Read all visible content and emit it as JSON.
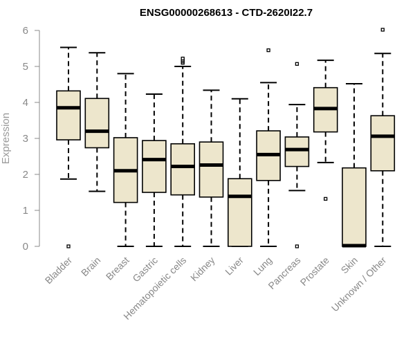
{
  "chart_data": {
    "type": "boxplot",
    "title": "ENSG00000268613 - CTD-2620I22.7",
    "xlabel": "",
    "ylabel": "Expression",
    "ylim": [
      0,
      6
    ],
    "yticks": [
      0,
      1,
      2,
      3,
      4,
      5,
      6
    ],
    "grid": false,
    "box_fill": "#ede6cc",
    "categories": [
      "Bladder",
      "Brain",
      "Breast",
      "Gastric",
      "Hematopoietic cells",
      "Kidney",
      "Liver",
      "Lung",
      "Pancreas",
      "Prostate",
      "Skin",
      "Unknown / Other"
    ],
    "series": [
      {
        "name": "Bladder",
        "min": 1.87,
        "q1": 2.96,
        "median": 3.85,
        "q3": 4.32,
        "max": 5.53,
        "outliers": [
          0.0
        ]
      },
      {
        "name": "Brain",
        "min": 1.53,
        "q1": 2.74,
        "median": 3.2,
        "q3": 4.11,
        "max": 5.38,
        "outliers": []
      },
      {
        "name": "Breast",
        "min": 0.0,
        "q1": 1.22,
        "median": 2.1,
        "q3": 3.02,
        "max": 4.8,
        "outliers": []
      },
      {
        "name": "Gastric",
        "min": 0.0,
        "q1": 1.5,
        "median": 2.41,
        "q3": 2.94,
        "max": 4.23,
        "outliers": []
      },
      {
        "name": "Hematopoietic cells",
        "min": 0.0,
        "q1": 1.43,
        "median": 2.22,
        "q3": 2.85,
        "max": 5.0,
        "outliers": [
          5.1,
          5.14,
          5.18,
          5.22
        ]
      },
      {
        "name": "Kidney",
        "min": 0.0,
        "q1": 1.37,
        "median": 2.26,
        "q3": 2.9,
        "max": 4.34,
        "outliers": []
      },
      {
        "name": "Liver",
        "min": 0.0,
        "q1": 0.0,
        "median": 1.39,
        "q3": 1.88,
        "max": 4.1,
        "outliers": []
      },
      {
        "name": "Lung",
        "min": 0.0,
        "q1": 1.83,
        "median": 2.55,
        "q3": 3.21,
        "max": 4.55,
        "outliers": [
          5.45
        ]
      },
      {
        "name": "Pancreas",
        "min": 1.55,
        "q1": 2.22,
        "median": 2.69,
        "q3": 3.04,
        "max": 3.94,
        "outliers": [
          5.07,
          0.0
        ]
      },
      {
        "name": "Prostate",
        "min": 2.33,
        "q1": 3.18,
        "median": 3.83,
        "q3": 4.41,
        "max": 5.17,
        "outliers": [
          1.32
        ]
      },
      {
        "name": "Skin",
        "min": 0.0,
        "q1": 0.0,
        "median": 0.02,
        "q3": 2.18,
        "max": 4.52,
        "outliers": []
      },
      {
        "name": "Unknown / Other",
        "min": 0.0,
        "q1": 2.1,
        "median": 3.06,
        "q3": 3.63,
        "max": 5.36,
        "outliers": [
          6.02
        ]
      }
    ]
  }
}
